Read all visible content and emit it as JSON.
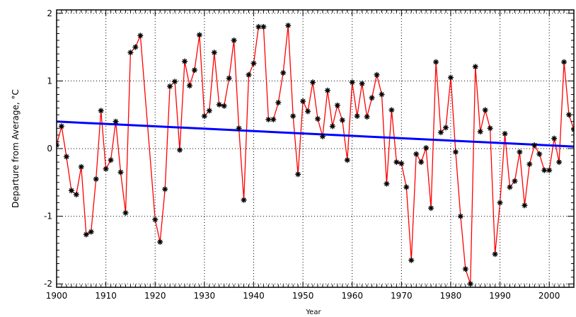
{
  "chart_data": {
    "type": "line",
    "title": "",
    "xlabel": "Year",
    "ylabel": "Departure from Average, °C",
    "xlim": [
      1900,
      2005
    ],
    "ylim": [
      -2.05,
      2.05
    ],
    "x_ticks": [
      1900,
      1910,
      1920,
      1930,
      1940,
      1950,
      1960,
      1970,
      1980,
      1990,
      2000
    ],
    "y_ticks": [
      -2,
      -1,
      0,
      1,
      2
    ],
    "grid": true,
    "legend": "none",
    "series": [
      {
        "color": "#ff0000",
        "marker": "asterisk",
        "x": [
          1900,
          1901,
          1902,
          1903,
          1904,
          1905,
          1906,
          1907,
          1908,
          1909,
          1910,
          1911,
          1912,
          1913,
          1914,
          1915,
          1916,
          1917,
          1920,
          1921,
          1922,
          1923,
          1924,
          1925,
          1926,
          1927,
          1928,
          1929,
          1930,
          1931,
          1932,
          1933,
          1934,
          1935,
          1936,
          1937,
          1938,
          1939,
          1940,
          1941,
          1942,
          1943,
          1944,
          1945,
          1946,
          1947,
          1948,
          1949,
          1950,
          1951,
          1952,
          1953,
          1954,
          1955,
          1956,
          1957,
          1958,
          1959,
          1960,
          1961,
          1962,
          1963,
          1964,
          1965,
          1966,
          1967,
          1968,
          1969,
          1970,
          1971,
          1972,
          1973,
          1974,
          1975,
          1976,
          1977,
          1978,
          1979,
          1980,
          1981,
          1982,
          1983,
          1984,
          1985,
          1986,
          1987,
          1988,
          1989,
          1990,
          1991,
          1992,
          1993,
          1994,
          1995,
          1996,
          1997,
          1998,
          1999,
          2000,
          2001,
          2002,
          2003,
          2004,
          2005
        ],
        "y": [
          0.05,
          0.33,
          -0.12,
          -0.62,
          -0.68,
          -0.27,
          -1.27,
          -1.23,
          -0.45,
          0.56,
          -0.3,
          -0.17,
          0.4,
          -0.35,
          -0.95,
          1.42,
          1.5,
          1.67,
          -1.05,
          -1.38,
          -0.6,
          0.92,
          0.99,
          -0.02,
          1.29,
          0.93,
          1.16,
          1.68,
          0.48,
          0.56,
          1.42,
          0.65,
          0.63,
          1.04,
          1.6,
          0.3,
          -0.76,
          1.09,
          1.26,
          1.8,
          1.8,
          0.43,
          0.43,
          0.68,
          1.12,
          1.82,
          0.48,
          -0.38,
          0.7,
          0.55,
          0.98,
          0.44,
          0.18,
          0.86,
          0.33,
          0.64,
          0.42,
          -0.17,
          0.98,
          0.48,
          0.96,
          0.47,
          0.75,
          1.09,
          0.8,
          -0.52,
          0.57,
          -0.2,
          -0.22,
          -0.57,
          -1.65,
          -0.08,
          -0.2,
          0.01,
          -0.88,
          1.28,
          0.24,
          0.31,
          1.05,
          -0.05,
          -1.0,
          -1.78,
          -2.0,
          1.21,
          0.25,
          0.57,
          0.3,
          -1.56,
          -0.8,
          0.22,
          -0.57,
          -0.48,
          -0.05,
          -0.84,
          -0.23,
          0.05,
          -0.08,
          -0.32,
          -0.32,
          0.15,
          -0.2,
          1.28,
          0.5,
          0.28
        ]
      },
      {
        "color": "#0000ff",
        "x": [
          1900,
          2005
        ],
        "y": [
          0.4,
          0.03
        ]
      }
    ]
  }
}
